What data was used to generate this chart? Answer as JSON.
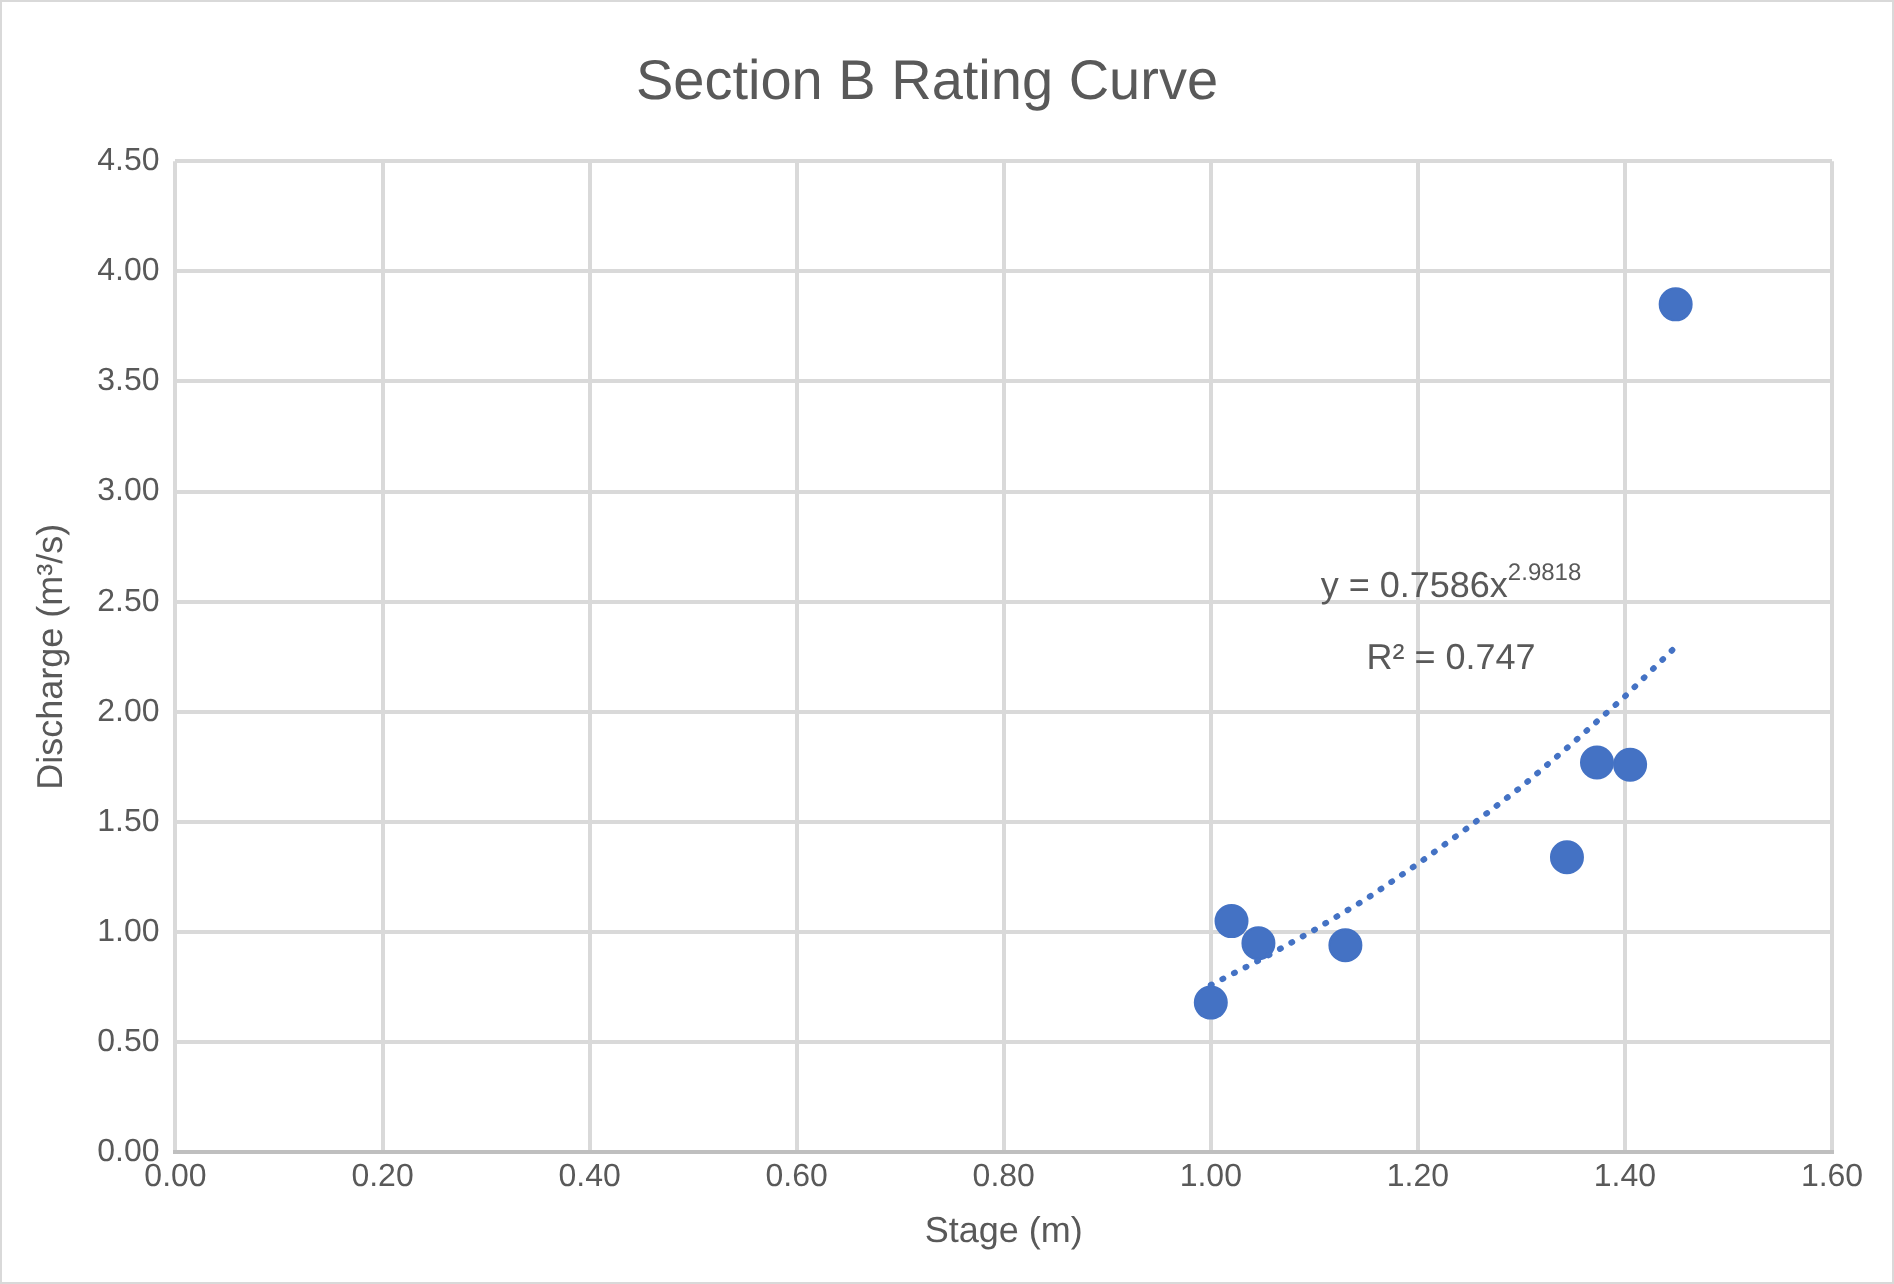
{
  "chart_data": {
    "type": "scatter",
    "title": "Section B Rating Curve",
    "xlabel": "Stage (m)",
    "ylabel": "Discharge (m³/s)",
    "x": [
      1.0,
      1.02,
      1.046,
      1.13,
      1.344,
      1.373,
      1.405,
      1.449
    ],
    "series": [
      {
        "color": "#4472c4",
        "marker": "circle",
        "values": [
          0.68,
          1.05,
          0.95,
          0.94,
          1.34,
          1.77,
          1.76,
          3.85
        ]
      },
      {
        "type": "line",
        "color": "#4472c4",
        "marker": "none",
        "line_style": "dotted",
        "x": [
          1.0,
          1.05,
          1.1,
          1.15,
          1.2,
          1.25,
          1.3,
          1.35,
          1.4,
          1.45
        ],
        "values": [
          0.76,
          0.88,
          1.01,
          1.15,
          1.31,
          1.48,
          1.66,
          1.86,
          2.07,
          2.3
        ]
      }
    ],
    "annotations": [
      "y = 0.7586x$^{2.9818}$",
      "R² = 0.747"
    ],
    "xlim": [
      0,
      1.6
    ],
    "ylim": [
      0,
      4.5
    ],
    "xticks": [
      {
        "value": 0,
        "label": "0.00"
      },
      {
        "value": 0.2,
        "label": "0.20"
      },
      {
        "value": 0.4,
        "label": "0.40"
      },
      {
        "value": 0.6,
        "label": "0.60"
      },
      {
        "value": 0.8,
        "label": "0.80"
      },
      {
        "value": 1,
        "label": "1.00"
      },
      {
        "value": 1.2,
        "label": "1.20"
      },
      {
        "value": 1.4,
        "label": "1.40"
      },
      {
        "value": 1.6,
        "label": "1.60"
      }
    ],
    "yticks": [
      {
        "value": 0,
        "label": "0.00"
      },
      {
        "value": 0.5,
        "label": "0.50"
      },
      {
        "value": 1,
        "label": "1.00"
      },
      {
        "value": 1.5,
        "label": "1.50"
      },
      {
        "value": 2,
        "label": "2.00"
      },
      {
        "value": 2.5,
        "label": "2.50"
      },
      {
        "value": 3,
        "label": "3.00"
      },
      {
        "value": 3.5,
        "label": "3.50"
      },
      {
        "value": 4,
        "label": "4.00"
      },
      {
        "value": 4.5,
        "label": "4.50"
      }
    ],
    "grid": true,
    "legend": false
  }
}
